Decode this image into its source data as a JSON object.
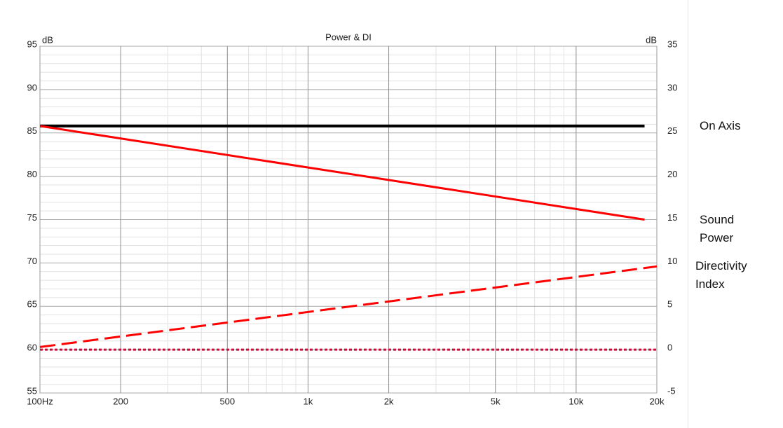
{
  "chart_data": {
    "type": "line",
    "title": "Power & DI",
    "y_unit": "dB",
    "y2_unit": "dB",
    "xscale": "log",
    "xlim": [
      100,
      20000
    ],
    "xticks": [
      {
        "value": 100,
        "label": "100Hz"
      },
      200,
      500,
      {
        "value": 1000,
        "label": "1k"
      },
      {
        "value": 2000,
        "label": "2k"
      },
      {
        "value": 5000,
        "label": "5k"
      },
      {
        "value": 10000,
        "label": "10k"
      },
      {
        "value": 20000,
        "label": "20k"
      }
    ],
    "xminorticks": [
      300,
      400,
      600,
      700,
      800,
      900,
      3000,
      4000,
      6000,
      7000,
      8000,
      9000
    ],
    "ylim": [
      55,
      95
    ],
    "yticks": [
      55,
      60,
      65,
      70,
      75,
      80,
      85,
      90,
      95
    ],
    "yminorticks": [
      56,
      57,
      58,
      59,
      61,
      62,
      63,
      64,
      66,
      67,
      68,
      69,
      71,
      72,
      73,
      74,
      76,
      77,
      78,
      79,
      81,
      82,
      83,
      84,
      86,
      87,
      88,
      89,
      91,
      92,
      93,
      94
    ],
    "y2lim": [
      -5,
      35
    ],
    "y2ticks": [
      -5,
      0,
      5,
      10,
      15,
      20,
      25,
      30,
      35
    ],
    "grid": true,
    "series": [
      {
        "name": "On Axis",
        "color": "#000000",
        "dash": "solid",
        "width": 4,
        "x": [
          100,
          18000
        ],
        "values": [
          85.8,
          85.8
        ]
      },
      {
        "name": "Sound Power",
        "color": "#ff0000",
        "dash": "solid",
        "width": 3,
        "x": [
          100,
          18000
        ],
        "values": [
          85.8,
          75
        ]
      },
      {
        "name": "Directivity Index",
        "color": "#ff0000",
        "dash": "dashed",
        "width": 3,
        "axis": "y2",
        "x": [
          100,
          20000
        ],
        "values": [
          0.3,
          9.6
        ]
      },
      {
        "color": "#c8103c",
        "dash": "dotted",
        "width": 3,
        "axis": "y2",
        "x": [
          100,
          20000
        ],
        "values": [
          0,
          0
        ]
      }
    ]
  }
}
